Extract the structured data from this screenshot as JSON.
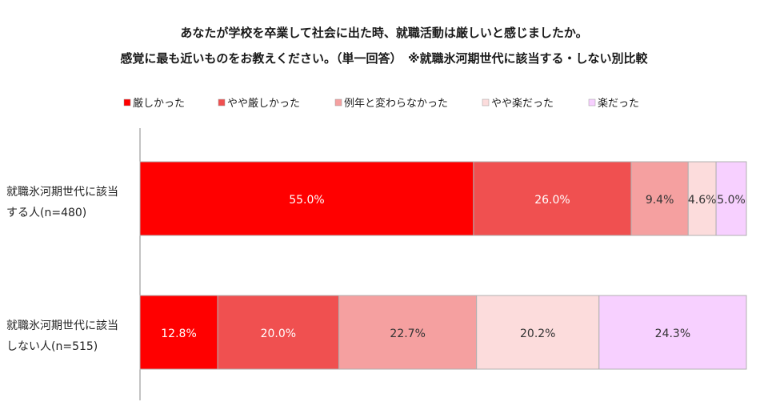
{
  "title_line1": "あなたが学校を卒業して社会に出た時、就職活動は厳しいと感じましたか。",
  "title_line2": "感覚に最も近いものをお教えください。（単一回答）　※就職氷河期世代に該当する・しない別比較",
  "chart_data": {
    "type": "bar",
    "orientation": "horizontal",
    "stacked": "percent",
    "legend_position": "top",
    "grid": false,
    "categories": [
      "就職氷河期世代に該当する人(n=480)",
      "就職氷河期世代に該当しない人(n=515)"
    ],
    "category_lines": [
      [
        "就職氷河期世代に該当",
        "する人(n=480)"
      ],
      [
        "就職氷河期世代に該当",
        "しない人(n=515)"
      ]
    ],
    "series": [
      {
        "name": "厳しかった",
        "values": [
          55.0,
          12.8
        ],
        "labels": [
          "55.0%",
          "12.8%"
        ],
        "color": "#ff0000",
        "label_color": "#ffffff"
      },
      {
        "name": "やや厳しかった",
        "values": [
          26.0,
          20.0
        ],
        "labels": [
          "26.0%",
          "20.0%"
        ],
        "color": "#f05050",
        "label_color": "#ffffff"
      },
      {
        "name": "例年と変わらなかった",
        "values": [
          9.4,
          22.7
        ],
        "labels": [
          "9.4%",
          "22.7%"
        ],
        "color": "#f5a0a0",
        "label_color": "#333333"
      },
      {
        "name": "やや楽だった",
        "values": [
          4.6,
          20.2
        ],
        "labels": [
          "4.6%",
          "20.2%"
        ],
        "color": "#fcdcdc",
        "label_color": "#333333"
      },
      {
        "name": "楽だった",
        "values": [
          5.0,
          24.3
        ],
        "labels": [
          "5.0%",
          "24.3%"
        ],
        "color": "#f7d0ff",
        "label_color": "#333333"
      }
    ]
  }
}
